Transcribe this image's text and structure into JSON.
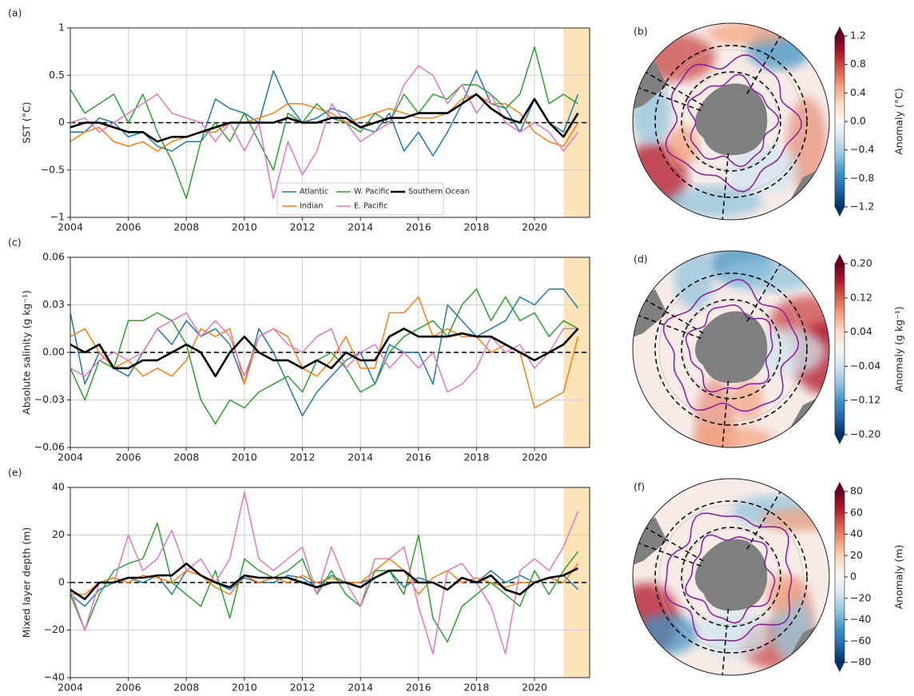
{
  "chart_data": [
    {
      "type": "line",
      "panel_label": "(a)",
      "y_label": "SST (°C)",
      "x": [
        2004,
        2004.5,
        2005,
        2005.5,
        2006,
        2006.5,
        2007,
        2007.5,
        2008,
        2008.5,
        2009,
        2009.5,
        2010,
        2010.5,
        2011,
        2011.5,
        2012,
        2012.5,
        2013,
        2013.5,
        2014,
        2014.5,
        2015,
        2015.5,
        2016,
        2016.5,
        2017,
        2017.5,
        2018,
        2018.5,
        2019,
        2019.5,
        2020,
        2020.5,
        2021,
        2021.5
      ],
      "xlim": [
        2004,
        2021.9
      ],
      "xticks": [
        2004,
        2006,
        2008,
        2010,
        2012,
        2014,
        2016,
        2018,
        2020
      ],
      "ylim": [
        -1,
        1
      ],
      "yticks": [
        {
          "value": -1,
          "label": "−1"
        },
        {
          "value": -0.5,
          "label": "−0.5"
        },
        0,
        0.5,
        1
      ],
      "grid": true,
      "hline": 0,
      "highlight": [
        2021,
        2021.9
      ],
      "highlight_color": "#fde3b8",
      "legend": "lower center",
      "series": [
        {
          "name": "Atlantic",
          "color": "#1f77b4",
          "values": [
            -0.1,
            -0.1,
            0.05,
            0,
            -0.15,
            -0.1,
            -0.25,
            -0.3,
            -0.2,
            -0.2,
            0.25,
            0.15,
            0.1,
            0,
            0.55,
            0.2,
            0,
            0.05,
            0.15,
            0.1,
            -0.05,
            -0.1,
            0.1,
            -0.3,
            -0.1,
            -0.35,
            -0.1,
            0.2,
            0.55,
            0.2,
            0.15,
            -0.1,
            0.25,
            0,
            -0.1,
            0.3
          ]
        },
        {
          "name": "Indian",
          "color": "#ff7f0e",
          "values": [
            -0.2,
            -0.1,
            -0.05,
            -0.2,
            -0.25,
            -0.2,
            -0.3,
            -0.2,
            -0.15,
            -0.1,
            -0.1,
            0,
            0,
            0.05,
            0.1,
            0.2,
            0.2,
            0.15,
            0.1,
            0,
            0.05,
            0.1,
            0.15,
            0.1,
            0.05,
            0.05,
            0.1,
            0.25,
            0.3,
            0.2,
            0.2,
            0.1,
            -0.1,
            -0.2,
            -0.25,
            0
          ]
        },
        {
          "name": "W. Pacific",
          "color": "#2ca02c",
          "values": [
            0.35,
            0.1,
            0.2,
            0.3,
            0,
            0.3,
            -0.1,
            -0.4,
            -0.8,
            -0.2,
            0,
            -0.2,
            0.1,
            -0.2,
            -0.5,
            0.1,
            0,
            0.2,
            0.05,
            0,
            -0.1,
            0.1,
            0,
            0.3,
            0.1,
            0.3,
            0.25,
            0.4,
            0.4,
            0.3,
            0.15,
            0.3,
            0.8,
            0.2,
            0.3,
            0.2
          ]
        },
        {
          "name": "E. Pacific",
          "color": "#e377c2",
          "values": [
            0,
            0.05,
            -0.1,
            0,
            0.1,
            0.2,
            0.3,
            0.1,
            0.05,
            0,
            -0.2,
            0,
            -0.3,
            0,
            -0.8,
            -0.2,
            -0.55,
            -0.3,
            0.2,
            0,
            -0.2,
            -0.1,
            0,
            0.4,
            0.6,
            0.5,
            0.2,
            0.4,
            0.1,
            0.3,
            0,
            -0.1,
            0,
            -0.1,
            -0.3,
            -0.1
          ]
        },
        {
          "name": "Southern Ocean",
          "color": "#000000",
          "values": [
            -0.05,
            0,
            0,
            -0.05,
            -0.1,
            -0.1,
            -0.2,
            -0.15,
            -0.15,
            -0.1,
            -0.05,
            0,
            0,
            0,
            0,
            0.05,
            0,
            0,
            0.05,
            0.05,
            -0.05,
            0,
            0.05,
            0.05,
            0.1,
            0.1,
            0.1,
            0.2,
            0.3,
            0.15,
            0.05,
            0,
            0.25,
            0,
            -0.15,
            0.1
          ]
        }
      ]
    },
    {
      "type": "map",
      "panel_label": "(b)",
      "colorbar_label": "Anomaly (°C)",
      "clim": [
        -1.2,
        1.2
      ],
      "cticks": [
        {
          "value": -1.2,
          "label": "−1.2"
        },
        {
          "value": -0.8,
          "label": "−0.8"
        },
        {
          "value": -0.4,
          "label": "−0.4"
        },
        {
          "value": 0,
          "label": "0.0"
        },
        0.4,
        0.8,
        1.2
      ]
    },
    {
      "type": "line",
      "panel_label": "(c)",
      "y_label": "Absolute salinity (g kg⁻¹)",
      "x": [
        2004,
        2004.5,
        2005,
        2005.5,
        2006,
        2006.5,
        2007,
        2007.5,
        2008,
        2008.5,
        2009,
        2009.5,
        2010,
        2010.5,
        2011,
        2011.5,
        2012,
        2012.5,
        2013,
        2013.5,
        2014,
        2014.5,
        2015,
        2015.5,
        2016,
        2016.5,
        2017,
        2017.5,
        2018,
        2018.5,
        2019,
        2019.5,
        2020,
        2020.5,
        2021,
        2021.5
      ],
      "xlim": [
        2004,
        2021.9
      ],
      "xticks": [
        2004,
        2006,
        2008,
        2010,
        2012,
        2014,
        2016,
        2018,
        2020
      ],
      "ylim": [
        -0.06,
        0.06
      ],
      "yticks": [
        {
          "value": -0.06,
          "label": "−0.06"
        },
        {
          "value": -0.03,
          "label": "−0.03"
        },
        {
          "value": 0,
          "label": "0.00"
        },
        0.03,
        0.06
      ],
      "grid": true,
      "hline": 0,
      "highlight": [
        2021,
        2021.9
      ],
      "highlight_color": "#fde3b8",
      "series": [
        {
          "name": "Atlantic",
          "color": "#1f77b4",
          "values": [
            0.025,
            -0.02,
            0,
            -0.01,
            -0.015,
            0,
            0.015,
            0.005,
            0.02,
            0.01,
            0.015,
            0.005,
            -0.02,
            0.015,
            0,
            -0.02,
            -0.04,
            -0.025,
            -0.015,
            -0.005,
            0,
            -0.02,
            0.005,
            0,
            0,
            -0.02,
            0.03,
            0.02,
            0.01,
            0.015,
            0.02,
            0.035,
            0.03,
            0.04,
            0.04,
            0.028
          ]
        },
        {
          "name": "Indian",
          "color": "#ff7f0e",
          "values": [
            0.01,
            0.015,
            0,
            -0.01,
            -0.005,
            -0.015,
            -0.01,
            -0.015,
            -0.005,
            0.015,
            0.01,
            0.015,
            -0.02,
            0.01,
            0.015,
            0.01,
            -0.01,
            -0.015,
            -0.005,
            0.01,
            -0.01,
            -0.01,
            0.025,
            0.025,
            0.035,
            0.01,
            0.015,
            0.01,
            0.01,
            0,
            0.005,
            0,
            -0.035,
            -0.03,
            -0.025,
            0.01
          ]
        },
        {
          "name": "W. Pacific",
          "color": "#2ca02c",
          "values": [
            -0.01,
            -0.03,
            -0.005,
            -0.01,
            0.02,
            0.02,
            0.025,
            0.02,
            0.005,
            -0.03,
            -0.045,
            -0.03,
            -0.035,
            -0.025,
            -0.02,
            -0.015,
            -0.025,
            -0.005,
            0,
            -0.01,
            -0.025,
            -0.02,
            0,
            0.01,
            0.015,
            0.02,
            0.01,
            0.03,
            0.04,
            0.02,
            0.035,
            0.02,
            0.025,
            0.01,
            0.02,
            0.015
          ]
        },
        {
          "name": "E. Pacific",
          "color": "#e377c2",
          "values": [
            -0.01,
            -0.015,
            -0.005,
            0,
            -0.005,
            0,
            0.015,
            0.02,
            0.025,
            0.01,
            0.02,
            0.01,
            -0.015,
            0.01,
            0.015,
            0.005,
            0,
            0.01,
            0.015,
            -0.01,
            0,
            0.005,
            -0.01,
            0,
            -0.01,
            0,
            -0.025,
            -0.02,
            -0.01,
            0.01,
            0,
            0.005,
            -0.01,
            0,
            0.015,
            0.015
          ]
        },
        {
          "name": "Southern Ocean",
          "color": "#000000",
          "values": [
            0.005,
            0,
            0.005,
            -0.01,
            -0.01,
            -0.005,
            -0.005,
            0,
            0.005,
            0,
            -0.015,
            0,
            0.01,
            0,
            -0.005,
            -0.005,
            -0.01,
            -0.005,
            -0.01,
            0,
            -0.005,
            -0.005,
            0.01,
            0.015,
            0.01,
            0.01,
            0.01,
            0.012,
            0.01,
            0.01,
            0.005,
            0,
            -0.005,
            0,
            0.005,
            0.015
          ]
        }
      ]
    },
    {
      "type": "map",
      "panel_label": "(d)",
      "colorbar_label": "Anomaly (g kg⁻¹)",
      "clim": [
        -0.2,
        0.2
      ],
      "cticks": [
        {
          "value": -0.2,
          "label": "−0.20"
        },
        {
          "value": -0.12,
          "label": "−0.12"
        },
        {
          "value": -0.04,
          "label": "−0.04"
        },
        0.04,
        0.12,
        {
          "value": 0.2,
          "label": "0.20"
        }
      ]
    },
    {
      "type": "line",
      "panel_label": "(e)",
      "y_label": "Mixed layer depth (m)",
      "x": [
        2004,
        2004.5,
        2005,
        2005.5,
        2006,
        2006.5,
        2007,
        2007.5,
        2008,
        2008.5,
        2009,
        2009.5,
        2010,
        2010.5,
        2011,
        2011.5,
        2012,
        2012.5,
        2013,
        2013.5,
        2014,
        2014.5,
        2015,
        2015.5,
        2016,
        2016.5,
        2017,
        2017.5,
        2018,
        2018.5,
        2019,
        2019.5,
        2020,
        2020.5,
        2021,
        2021.5
      ],
      "xlim": [
        2004,
        2021.9
      ],
      "xticks": [
        2004,
        2006,
        2008,
        2010,
        2012,
        2014,
        2016,
        2018,
        2020
      ],
      "ylim": [
        -40,
        40
      ],
      "yticks": [
        {
          "value": -40,
          "label": "−40"
        },
        {
          "value": -20,
          "label": "−20"
        },
        0,
        20,
        40
      ],
      "grid": true,
      "hline": 0,
      "highlight": [
        2021,
        2021.9
      ],
      "highlight_color": "#fde3b8",
      "series": [
        {
          "name": "Atlantic",
          "color": "#1f77b4",
          "values": [
            -5,
            -10,
            -3,
            0,
            2,
            0,
            3,
            -5,
            5,
            3,
            0,
            -3,
            2,
            0,
            0,
            3,
            2,
            -2,
            3,
            0,
            0,
            2,
            5,
            -2,
            2,
            0,
            -3,
            2,
            0,
            5,
            0,
            3,
            0,
            2,
            3,
            -3
          ]
        },
        {
          "name": "Indian",
          "color": "#ff7f0e",
          "values": [
            -5,
            -5,
            0,
            2,
            0,
            3,
            2,
            0,
            5,
            3,
            -2,
            -5,
            3,
            0,
            2,
            0,
            3,
            0,
            2,
            0,
            0,
            5,
            10,
            5,
            -5,
            2,
            5,
            0,
            2,
            0,
            -2,
            0,
            0,
            2,
            0,
            8
          ]
        },
        {
          "name": "W. Pacific",
          "color": "#2ca02c",
          "values": [
            -5,
            -20,
            -5,
            5,
            8,
            10,
            25,
            0,
            -5,
            -10,
            5,
            -15,
            10,
            5,
            2,
            5,
            10,
            -5,
            5,
            -5,
            -10,
            5,
            5,
            -5,
            20,
            -15,
            -25,
            -10,
            -5,
            0,
            -5,
            -10,
            5,
            -5,
            5,
            13
          ]
        },
        {
          "name": "E. Pacific",
          "color": "#e377c2",
          "values": [
            -3,
            -20,
            0,
            0,
            20,
            5,
            10,
            22,
            5,
            10,
            0,
            10,
            38,
            10,
            5,
            10,
            15,
            -5,
            15,
            0,
            -10,
            10,
            10,
            15,
            -10,
            -30,
            5,
            8,
            0,
            -10,
            -30,
            5,
            10,
            5,
            15,
            30
          ]
        },
        {
          "name": "Southern Ocean",
          "color": "#000000",
          "values": [
            -3,
            -7,
            0,
            0,
            2,
            2,
            3,
            3,
            8,
            3,
            0,
            -2,
            3,
            2,
            2,
            2,
            0,
            -2,
            0,
            0,
            -2,
            2,
            5,
            5,
            0,
            0,
            -3,
            2,
            0,
            3,
            -3,
            -5,
            0,
            2,
            3,
            6
          ]
        }
      ]
    },
    {
      "type": "map",
      "panel_label": "(f)",
      "colorbar_label": "Anomaly (m)",
      "clim": [
        -80,
        80
      ],
      "cticks": [
        {
          "value": -80,
          "label": "−80"
        },
        {
          "value": -60,
          "label": "−60"
        },
        {
          "value": -40,
          "label": "−40"
        },
        {
          "value": -20,
          "label": "−20"
        },
        0,
        20,
        40,
        60,
        80
      ]
    }
  ]
}
